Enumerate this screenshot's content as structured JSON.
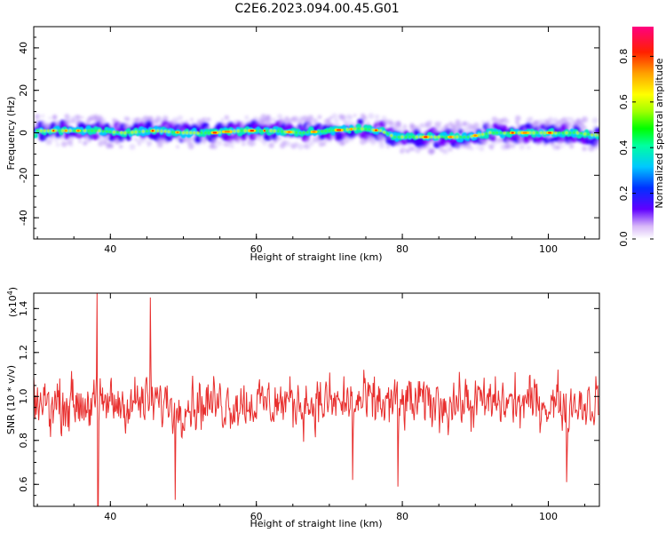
{
  "title": "C2E6.2023.094.00.45.G01",
  "chart_data": [
    {
      "type": "heatmap",
      "xlabel": "Height of straight line (km)",
      "ylabel": "Frequency (Hz)",
      "xlim": [
        29.5,
        107
      ],
      "ylim": [
        -50,
        50
      ],
      "xticks": [
        40,
        60,
        80,
        100
      ],
      "yticks": [
        40,
        20,
        0,
        -20,
        -40
      ],
      "band_center_hz": [
        [
          30,
          1
        ],
        [
          34,
          1
        ],
        [
          38,
          1
        ],
        [
          42,
          0
        ],
        [
          46,
          1
        ],
        [
          50,
          0
        ],
        [
          54,
          0
        ],
        [
          58,
          1
        ],
        [
          62,
          1
        ],
        [
          66,
          0
        ],
        [
          70,
          1
        ],
        [
          74,
          2
        ],
        [
          77,
          1
        ],
        [
          79,
          -2
        ],
        [
          82,
          -2
        ],
        [
          86,
          -2
        ],
        [
          89,
          -2
        ],
        [
          92,
          0
        ],
        [
          96,
          0
        ],
        [
          100,
          0
        ],
        [
          104,
          0
        ],
        [
          106,
          -1
        ]
      ],
      "peak_amplitude_note": "red cores along band",
      "colorbar": {
        "label": "Normalized spectral amplitude",
        "ticks": [
          "0.0",
          "0.2",
          "0.4",
          "0.6",
          "0.8"
        ],
        "range": [
          0,
          0.93
        ]
      }
    },
    {
      "type": "line",
      "xlabel": "Height of straight line (km)",
      "ylabel": "SNR (10 * v/v)",
      "scale_label": "(x10",
      "scale_exp": "4",
      "scale_close": ")",
      "xlim": [
        29.5,
        107
      ],
      "ylim": [
        0.5,
        1.47
      ],
      "xticks": [
        40,
        60,
        80,
        100
      ],
      "yticks": [
        "1.4",
        "1.2",
        "1.0",
        "0.8",
        "0.6"
      ],
      "series": [
        {
          "color": "#e8302f",
          "mean": 0.97,
          "spread": 0.12,
          "extremes": [
            [
              38.2,
              1.47
            ],
            [
              38.3,
              0.5
            ],
            [
              45.5,
              1.45
            ],
            [
              48.9,
              0.53
            ],
            [
              73.2,
              0.62
            ],
            [
              79.4,
              0.59
            ],
            [
              102.5,
              0.61
            ]
          ]
        }
      ]
    }
  ]
}
